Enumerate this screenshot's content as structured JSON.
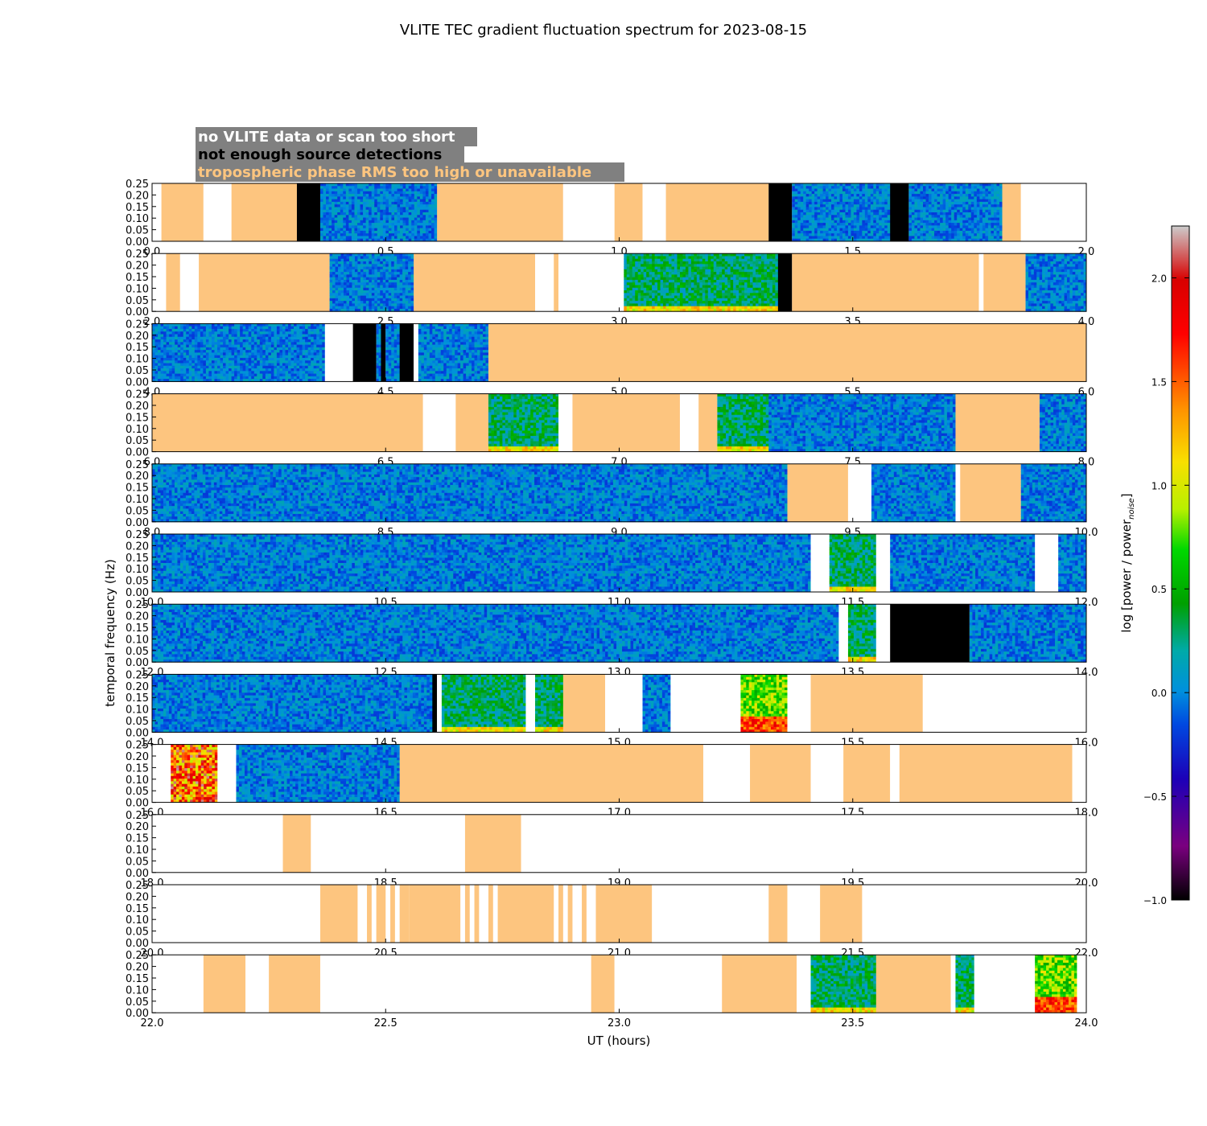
{
  "title": "VLITE TEC gradient fluctuation spectrum for 2023-08-15",
  "legend": {
    "items": [
      {
        "label": "no VLITE data or scan too short",
        "text_color": "#ffffff"
      },
      {
        "label": "not enough source detections",
        "text_color": "#000000"
      },
      {
        "label": "tropospheric phase RMS too high or unavailable",
        "text_color": "#fdc57f"
      }
    ],
    "box_color": "#808080"
  },
  "colors": {
    "no_data": "#ffffff",
    "no_detections": "#000000",
    "tropo": "#fdc57f"
  },
  "chart_data": {
    "type": "heatmap",
    "title": "VLITE TEC gradient fluctuation spectrum for 2023-08-15",
    "xlabel": "UT (hours)",
    "ylabel": "temporal frequency (Hz)",
    "ylim": [
      0.0,
      0.25
    ],
    "yticks": [
      "0.00",
      "0.05",
      "0.10",
      "0.15",
      "0.20",
      "0.25"
    ],
    "colorbar": {
      "label": "log [power / power",
      "label_sub": "noise",
      "label_end": "]",
      "range": [
        -1.0,
        2.25
      ],
      "ticks": [
        "−1.0",
        "−0.5",
        "0.0",
        "0.5",
        "1.0",
        "1.5",
        "2.0"
      ]
    },
    "panels": [
      {
        "range": [
          0.0,
          2.0
        ],
        "ticks": [
          "0.0",
          "0.5",
          "1.0",
          "1.5",
          "2.0"
        ],
        "segments": [
          {
            "start": 0.0,
            "end": 0.02,
            "kind": "nodata"
          },
          {
            "start": 0.02,
            "end": 0.11,
            "kind": "tropo"
          },
          {
            "start": 0.11,
            "end": 0.17,
            "kind": "nodata"
          },
          {
            "start": 0.17,
            "end": 0.31,
            "kind": "tropo"
          },
          {
            "start": 0.31,
            "end": 0.36,
            "kind": "nodet"
          },
          {
            "start": 0.36,
            "end": 0.61,
            "kind": "data",
            "level": "low"
          },
          {
            "start": 0.61,
            "end": 0.88,
            "kind": "tropo"
          },
          {
            "start": 0.88,
            "end": 0.99,
            "kind": "nodata"
          },
          {
            "start": 0.99,
            "end": 1.05,
            "kind": "tropo"
          },
          {
            "start": 1.05,
            "end": 1.1,
            "kind": "nodata"
          },
          {
            "start": 1.1,
            "end": 1.32,
            "kind": "tropo"
          },
          {
            "start": 1.32,
            "end": 1.37,
            "kind": "nodet"
          },
          {
            "start": 1.37,
            "end": 1.58,
            "kind": "data",
            "level": "low"
          },
          {
            "start": 1.58,
            "end": 1.62,
            "kind": "nodet"
          },
          {
            "start": 1.62,
            "end": 1.82,
            "kind": "data",
            "level": "low"
          },
          {
            "start": 1.82,
            "end": 1.86,
            "kind": "tropo"
          },
          {
            "start": 1.86,
            "end": 2.0,
            "kind": "nodata"
          }
        ]
      },
      {
        "range": [
          2.0,
          4.0
        ],
        "ticks": [
          "2.0",
          "2.5",
          "3.0",
          "3.5",
          "4.0"
        ],
        "segments": [
          {
            "start": 2.0,
            "end": 2.03,
            "kind": "nodata"
          },
          {
            "start": 2.03,
            "end": 2.06,
            "kind": "tropo"
          },
          {
            "start": 2.06,
            "end": 2.1,
            "kind": "nodata"
          },
          {
            "start": 2.1,
            "end": 2.38,
            "kind": "tropo"
          },
          {
            "start": 2.38,
            "end": 2.56,
            "kind": "data",
            "level": "low"
          },
          {
            "start": 2.56,
            "end": 2.82,
            "kind": "tropo"
          },
          {
            "start": 2.82,
            "end": 2.86,
            "kind": "nodata"
          },
          {
            "start": 2.86,
            "end": 2.87,
            "kind": "tropo"
          },
          {
            "start": 2.87,
            "end": 3.01,
            "kind": "nodata"
          },
          {
            "start": 3.01,
            "end": 3.34,
            "kind": "data",
            "level": "mid"
          },
          {
            "start": 3.34,
            "end": 3.37,
            "kind": "nodet"
          },
          {
            "start": 3.37,
            "end": 3.77,
            "kind": "tropo"
          },
          {
            "start": 3.77,
            "end": 3.78,
            "kind": "nodata"
          },
          {
            "start": 3.78,
            "end": 3.87,
            "kind": "tropo"
          },
          {
            "start": 3.87,
            "end": 4.0,
            "kind": "data",
            "level": "low"
          }
        ]
      },
      {
        "range": [
          4.0,
          6.0
        ],
        "ticks": [
          "4.0",
          "4.5",
          "5.0",
          "5.5",
          "6.0"
        ],
        "segments": [
          {
            "start": 4.0,
            "end": 4.37,
            "kind": "data",
            "level": "low"
          },
          {
            "start": 4.37,
            "end": 4.43,
            "kind": "nodata"
          },
          {
            "start": 4.43,
            "end": 4.48,
            "kind": "nodet"
          },
          {
            "start": 4.48,
            "end": 4.49,
            "kind": "data",
            "level": "low"
          },
          {
            "start": 4.49,
            "end": 4.5,
            "kind": "nodet"
          },
          {
            "start": 4.5,
            "end": 4.53,
            "kind": "data",
            "level": "low"
          },
          {
            "start": 4.53,
            "end": 4.56,
            "kind": "nodet"
          },
          {
            "start": 4.56,
            "end": 4.57,
            "kind": "nodata"
          },
          {
            "start": 4.57,
            "end": 4.72,
            "kind": "data",
            "level": "low"
          },
          {
            "start": 4.72,
            "end": 6.0,
            "kind": "tropo"
          }
        ]
      },
      {
        "range": [
          6.0,
          8.0
        ],
        "ticks": [
          "6.0",
          "6.5",
          "7.0",
          "7.5",
          "8.0"
        ],
        "segments": [
          {
            "start": 6.0,
            "end": 6.58,
            "kind": "tropo"
          },
          {
            "start": 6.58,
            "end": 6.65,
            "kind": "nodata"
          },
          {
            "start": 6.65,
            "end": 6.72,
            "kind": "tropo"
          },
          {
            "start": 6.72,
            "end": 6.87,
            "kind": "data",
            "level": "mid"
          },
          {
            "start": 6.87,
            "end": 6.9,
            "kind": "nodata"
          },
          {
            "start": 6.9,
            "end": 7.13,
            "kind": "tropo"
          },
          {
            "start": 7.13,
            "end": 7.17,
            "kind": "nodata"
          },
          {
            "start": 7.17,
            "end": 7.21,
            "kind": "tropo"
          },
          {
            "start": 7.21,
            "end": 7.32,
            "kind": "data",
            "level": "mid"
          },
          {
            "start": 7.32,
            "end": 7.72,
            "kind": "data",
            "level": "low"
          },
          {
            "start": 7.72,
            "end": 7.9,
            "kind": "tropo"
          },
          {
            "start": 7.9,
            "end": 8.0,
            "kind": "data",
            "level": "low"
          }
        ]
      },
      {
        "range": [
          8.0,
          10.0
        ],
        "ticks": [
          "8.0",
          "8.5",
          "9.0",
          "9.5",
          "10.0"
        ],
        "segments": [
          {
            "start": 8.0,
            "end": 9.36,
            "kind": "data",
            "level": "low"
          },
          {
            "start": 9.36,
            "end": 9.49,
            "kind": "tropo"
          },
          {
            "start": 9.49,
            "end": 9.54,
            "kind": "nodata"
          },
          {
            "start": 9.54,
            "end": 9.72,
            "kind": "data",
            "level": "low"
          },
          {
            "start": 9.72,
            "end": 9.73,
            "kind": "nodata"
          },
          {
            "start": 9.73,
            "end": 9.86,
            "kind": "tropo"
          },
          {
            "start": 9.86,
            "end": 10.0,
            "kind": "data",
            "level": "low"
          }
        ]
      },
      {
        "range": [
          10.0,
          12.0
        ],
        "ticks": [
          "10.0",
          "10.5",
          "11.0",
          "11.5",
          "12.0"
        ],
        "segments": [
          {
            "start": 10.0,
            "end": 11.41,
            "kind": "data",
            "level": "low"
          },
          {
            "start": 11.41,
            "end": 11.45,
            "kind": "nodata"
          },
          {
            "start": 11.45,
            "end": 11.55,
            "kind": "data",
            "level": "mid"
          },
          {
            "start": 11.55,
            "end": 11.58,
            "kind": "nodata"
          },
          {
            "start": 11.58,
            "end": 11.89,
            "kind": "data",
            "level": "low"
          },
          {
            "start": 11.89,
            "end": 11.94,
            "kind": "nodata"
          },
          {
            "start": 11.94,
            "end": 12.0,
            "kind": "data",
            "level": "low"
          }
        ]
      },
      {
        "range": [
          12.0,
          14.0
        ],
        "ticks": [
          "12.0",
          "12.5",
          "13.0",
          "13.5",
          "14.0"
        ],
        "segments": [
          {
            "start": 12.0,
            "end": 13.47,
            "kind": "data",
            "level": "low"
          },
          {
            "start": 13.47,
            "end": 13.49,
            "kind": "nodata"
          },
          {
            "start": 13.49,
            "end": 13.55,
            "kind": "data",
            "level": "mid"
          },
          {
            "start": 13.55,
            "end": 13.58,
            "kind": "nodata"
          },
          {
            "start": 13.58,
            "end": 13.75,
            "kind": "nodet"
          },
          {
            "start": 13.75,
            "end": 14.0,
            "kind": "data",
            "level": "low"
          }
        ]
      },
      {
        "range": [
          14.0,
          16.0
        ],
        "ticks": [
          "14.0",
          "14.5",
          "15.0",
          "15.5",
          "16.0"
        ],
        "segments": [
          {
            "start": 14.0,
            "end": 14.6,
            "kind": "data",
            "level": "low"
          },
          {
            "start": 14.6,
            "end": 14.61,
            "kind": "nodet"
          },
          {
            "start": 14.61,
            "end": 14.62,
            "kind": "nodata"
          },
          {
            "start": 14.62,
            "end": 14.8,
            "kind": "data",
            "level": "mid"
          },
          {
            "start": 14.8,
            "end": 14.82,
            "kind": "nodata"
          },
          {
            "start": 14.82,
            "end": 14.88,
            "kind": "data",
            "level": "mid"
          },
          {
            "start": 14.88,
            "end": 14.97,
            "kind": "tropo"
          },
          {
            "start": 14.97,
            "end": 15.05,
            "kind": "nodata"
          },
          {
            "start": 15.05,
            "end": 15.11,
            "kind": "data",
            "level": "low"
          },
          {
            "start": 15.11,
            "end": 15.26,
            "kind": "nodata"
          },
          {
            "start": 15.26,
            "end": 15.36,
            "kind": "data",
            "level": "high"
          },
          {
            "start": 15.36,
            "end": 15.41,
            "kind": "nodata"
          },
          {
            "start": 15.41,
            "end": 15.65,
            "kind": "tropo"
          },
          {
            "start": 15.65,
            "end": 16.0,
            "kind": "nodata"
          }
        ]
      },
      {
        "range": [
          16.0,
          18.0
        ],
        "ticks": [
          "16.0",
          "16.5",
          "17.0",
          "17.5",
          "18.0"
        ],
        "segments": [
          {
            "start": 16.0,
            "end": 16.04,
            "kind": "nodata"
          },
          {
            "start": 16.04,
            "end": 16.14,
            "kind": "data",
            "level": "sat"
          },
          {
            "start": 16.14,
            "end": 16.18,
            "kind": "nodata"
          },
          {
            "start": 16.18,
            "end": 16.53,
            "kind": "data",
            "level": "low"
          },
          {
            "start": 16.53,
            "end": 17.18,
            "kind": "tropo"
          },
          {
            "start": 17.18,
            "end": 17.28,
            "kind": "nodata"
          },
          {
            "start": 17.28,
            "end": 17.41,
            "kind": "tropo"
          },
          {
            "start": 17.41,
            "end": 17.48,
            "kind": "nodata"
          },
          {
            "start": 17.48,
            "end": 17.58,
            "kind": "tropo"
          },
          {
            "start": 17.58,
            "end": 17.6,
            "kind": "nodata"
          },
          {
            "start": 17.6,
            "end": 17.97,
            "kind": "tropo"
          },
          {
            "start": 17.97,
            "end": 18.0,
            "kind": "nodata"
          }
        ]
      },
      {
        "range": [
          18.0,
          20.0
        ],
        "ticks": [
          "18.0",
          "18.5",
          "19.0",
          "19.5",
          "20.0"
        ],
        "segments": [
          {
            "start": 18.0,
            "end": 18.28,
            "kind": "nodata"
          },
          {
            "start": 18.28,
            "end": 18.34,
            "kind": "tropo"
          },
          {
            "start": 18.34,
            "end": 18.67,
            "kind": "nodata"
          },
          {
            "start": 18.67,
            "end": 18.79,
            "kind": "tropo"
          },
          {
            "start": 18.79,
            "end": 20.0,
            "kind": "nodata"
          }
        ]
      },
      {
        "range": [
          20.0,
          22.0
        ],
        "ticks": [
          "20.0",
          "20.5",
          "21.0",
          "21.5",
          "22.0"
        ],
        "segments": [
          {
            "start": 20.0,
            "end": 20.36,
            "kind": "nodata"
          },
          {
            "start": 20.36,
            "end": 20.44,
            "kind": "tropo"
          },
          {
            "start": 20.46,
            "end": 20.47,
            "kind": "tropo"
          },
          {
            "start": 20.48,
            "end": 20.5,
            "kind": "tropo"
          },
          {
            "start": 20.51,
            "end": 20.52,
            "kind": "tropo"
          },
          {
            "start": 20.53,
            "end": 20.55,
            "kind": "tropo"
          },
          {
            "start": 20.55,
            "end": 20.66,
            "kind": "tropo"
          },
          {
            "start": 20.67,
            "end": 20.68,
            "kind": "tropo"
          },
          {
            "start": 20.69,
            "end": 20.7,
            "kind": "tropo"
          },
          {
            "start": 20.72,
            "end": 20.73,
            "kind": "tropo"
          },
          {
            "start": 20.74,
            "end": 20.86,
            "kind": "tropo"
          },
          {
            "start": 20.87,
            "end": 20.88,
            "kind": "tropo"
          },
          {
            "start": 20.89,
            "end": 20.9,
            "kind": "tropo"
          },
          {
            "start": 20.92,
            "end": 20.93,
            "kind": "tropo"
          },
          {
            "start": 20.95,
            "end": 21.07,
            "kind": "tropo"
          },
          {
            "start": 21.32,
            "end": 21.36,
            "kind": "tropo"
          },
          {
            "start": 21.43,
            "end": 21.52,
            "kind": "tropo"
          }
        ]
      },
      {
        "range": [
          22.0,
          24.0
        ],
        "ticks": [
          "22.0",
          "22.5",
          "23.0",
          "23.5",
          "24.0"
        ],
        "segments": [
          {
            "start": 22.0,
            "end": 22.11,
            "kind": "nodata"
          },
          {
            "start": 22.11,
            "end": 22.2,
            "kind": "tropo"
          },
          {
            "start": 22.2,
            "end": 22.25,
            "kind": "nodata"
          },
          {
            "start": 22.25,
            "end": 22.36,
            "kind": "tropo"
          },
          {
            "start": 22.36,
            "end": 22.94,
            "kind": "nodata"
          },
          {
            "start": 22.94,
            "end": 22.99,
            "kind": "tropo"
          },
          {
            "start": 22.99,
            "end": 23.22,
            "kind": "nodata"
          },
          {
            "start": 23.22,
            "end": 23.38,
            "kind": "tropo"
          },
          {
            "start": 23.38,
            "end": 23.41,
            "kind": "nodata"
          },
          {
            "start": 23.41,
            "end": 23.55,
            "kind": "data",
            "level": "mid"
          },
          {
            "start": 23.55,
            "end": 23.71,
            "kind": "tropo"
          },
          {
            "start": 23.71,
            "end": 23.72,
            "kind": "nodata"
          },
          {
            "start": 23.72,
            "end": 23.76,
            "kind": "data",
            "level": "mid"
          },
          {
            "start": 23.76,
            "end": 23.89,
            "kind": "nodata"
          },
          {
            "start": 23.89,
            "end": 23.98,
            "kind": "data",
            "level": "high"
          },
          {
            "start": 23.98,
            "end": 24.0,
            "kind": "nodata"
          }
        ]
      }
    ]
  }
}
